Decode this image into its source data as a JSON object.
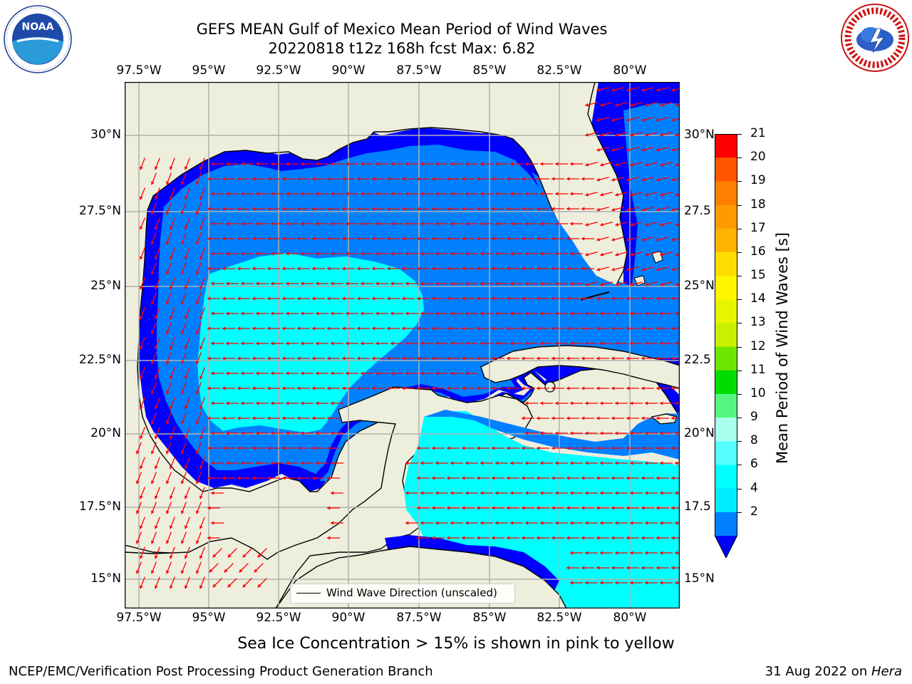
{
  "title_line1": "GEFS MEAN Gulf of Mexico Mean Period of Wind Waves",
  "title_line2": "20220818 t12z 168h fcst   Max: 6.82",
  "logos": {
    "left": {
      "name": "noaa-logo",
      "text": "NOAA",
      "ring_text": "NATIONAL OCEANIC AND ATMOSPHERIC ADMINISTRATION · U.S. DEPARTMENT OF COMMERCE"
    },
    "right": {
      "name": "nws-logo",
      "ring_text": "NATIONAL WEATHER SERVICE"
    }
  },
  "lon_ticks": [
    "97.5°W",
    "95°W",
    "92.5°W",
    "90°W",
    "87.5°W",
    "85°W",
    "82.5°W",
    "80°W"
  ],
  "lat_ticks_left": [
    "30°N",
    "27.5°N",
    "25°N",
    "22.5°N",
    "20°N",
    "17.5°N",
    "15°N"
  ],
  "lat_ticks_right": [
    "30°N",
    "27.5",
    "25°N",
    "22.5",
    "20°N",
    "17.5",
    "15°N"
  ],
  "legend_label": "Wind Wave Direction (unscaled)",
  "colorbar": {
    "label": "Mean Period of Wind Waves [s]",
    "ticks": [
      "21",
      "20",
      "19",
      "18",
      "17",
      "16",
      "15",
      "14",
      "13",
      "12",
      "11",
      "10",
      "9",
      "8",
      "6",
      "4",
      "2"
    ],
    "colors": [
      "#ff0000",
      "#ff2a00",
      "#ff5500",
      "#ff7f00",
      "#ff9a00",
      "#ffb400",
      "#ffdd00",
      "#fff600",
      "#e6f500",
      "#c8f000",
      "#6ee600",
      "#00e400",
      "#00dc00",
      "#55f580",
      "#aaffee",
      "#55ffff",
      "#00ffff",
      "#00ecff",
      "#0080ff"
    ],
    "underflow_color": "#0000ff"
  },
  "field_colors": {
    "land": "#eeeedd",
    "period_0_2": "#0000ff",
    "period_2_4": "#0080ff",
    "period_4_6": "#00ffff",
    "period_6_8": "#55ffff",
    "arrow": "#ff0000",
    "grid": "#b0b0b0"
  },
  "note": "Sea Ice Concentration > 15% is shown in pink to yellow",
  "footer_left": "NCEP/EMC/Verification Post Processing Product Generation Branch",
  "footer_right_date": "31 Aug 2022 on ",
  "footer_right_host": "Hera"
}
